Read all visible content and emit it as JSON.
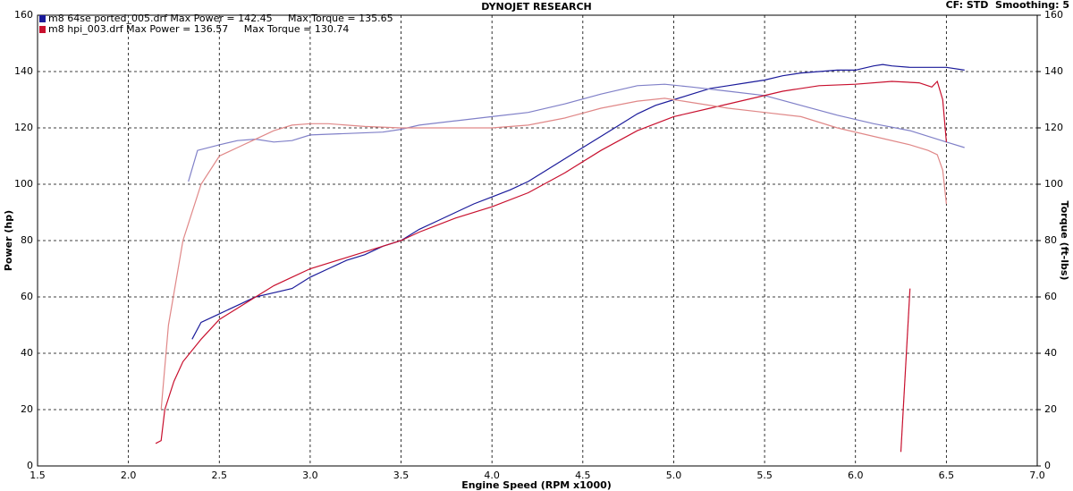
{
  "chart_data": {
    "type": "line",
    "title": "DYNOJET RESEARCH",
    "subtitle": "CF: STD  Smoothing: 5",
    "x_label": "Engine Speed (RPM x1000)",
    "y_label": "Power (hp)",
    "y2_label": "Torque (ft-lbs)",
    "legend": [
      {
        "text": "m8 64se ported_005.drf Max Power = 142.45     Max Torque = 135.65",
        "color": "#1a1a9a"
      },
      {
        "text": "m8 hpi_003.drf Max Power = 136.57     Max Torque = 130.74",
        "color": "#c8102e"
      }
    ],
    "xlim": [
      1.5,
      7.0
    ],
    "xticks": [
      1.5,
      {
        "value": 2,
        "label": "2.0"
      },
      2.5,
      {
        "value": 3,
        "label": "3.0"
      },
      3.5,
      {
        "value": 4,
        "label": "4.0"
      },
      4.5,
      {
        "value": 5,
        "label": "5.0"
      },
      5.5,
      {
        "value": 6,
        "label": "6.0"
      },
      6.5,
      {
        "value": 7,
        "label": "7.0"
      }
    ],
    "ylim": [
      0,
      160
    ],
    "yticks": [
      0,
      20,
      40,
      60,
      80,
      100,
      120,
      140,
      160
    ],
    "y2lim": [
      0,
      160
    ],
    "y2ticks": [
      0,
      20,
      40,
      60,
      80,
      100,
      120,
      140,
      160
    ],
    "grid": true,
    "series": [
      {
        "color": "#1a1a9a",
        "axis": "y",
        "x": [
          2.35,
          2.4,
          2.5,
          2.6,
          2.7,
          2.8,
          2.9,
          3.0,
          3.1,
          3.2,
          3.3,
          3.4,
          3.5,
          3.6,
          3.7,
          3.8,
          3.9,
          4.0,
          4.1,
          4.2,
          4.3,
          4.4,
          4.5,
          4.6,
          4.7,
          4.8,
          4.9,
          5.0,
          5.1,
          5.2,
          5.3,
          5.4,
          5.5,
          5.6,
          5.7,
          5.8,
          5.9,
          6.0,
          6.1,
          6.15,
          6.2,
          6.3,
          6.4,
          6.5,
          6.6
        ],
        "values": [
          45,
          51,
          54,
          57,
          60,
          61.5,
          63,
          67,
          70,
          73,
          75,
          78,
          80,
          84,
          87,
          90,
          93,
          95.5,
          98,
          101,
          105,
          109,
          113,
          117,
          121,
          125,
          128,
          130,
          132,
          134,
          135,
          136,
          137,
          138.5,
          139.5,
          140,
          140.5,
          140.5,
          142,
          142.5,
          142,
          141.5,
          141.5,
          141.5,
          140.5
        ]
      },
      {
        "color": "#8080c8",
        "axis": "y2",
        "x": [
          2.33,
          2.38,
          2.5,
          2.6,
          2.7,
          2.8,
          2.9,
          3.0,
          3.2,
          3.4,
          3.5,
          3.6,
          3.8,
          4.0,
          4.2,
          4.4,
          4.6,
          4.8,
          4.95,
          5.1,
          5.3,
          5.5,
          5.7,
          5.9,
          6.1,
          6.3,
          6.5,
          6.6
        ],
        "values": [
          101,
          112,
          114,
          115.5,
          116,
          115,
          115.5,
          117.5,
          118,
          118.5,
          119.5,
          121,
          122.5,
          124,
          125.5,
          128.5,
          132,
          135,
          135.5,
          134.5,
          133,
          131.5,
          128,
          124.5,
          121.5,
          119,
          115,
          113
        ]
      },
      {
        "color": "#c8102e",
        "axis": "y",
        "x": [
          2.15,
          2.18,
          2.2,
          2.25,
          2.3,
          2.4,
          2.5,
          2.6,
          2.7,
          2.8,
          2.9,
          3.0,
          3.2,
          3.4,
          3.5,
          3.6,
          3.8,
          4.0,
          4.2,
          4.4,
          4.6,
          4.8,
          5.0,
          5.2,
          5.4,
          5.6,
          5.8,
          6.0,
          6.2,
          6.35,
          6.42,
          6.45,
          6.48,
          6.5
        ],
        "values": [
          8,
          9,
          20,
          30,
          37,
          45,
          52,
          56,
          60,
          64,
          67,
          70,
          74,
          78,
          80,
          83,
          88,
          92,
          97,
          104,
          112,
          119,
          124,
          127,
          130,
          133,
          135,
          135.5,
          136.5,
          136,
          134.5,
          136.5,
          130,
          115
        ]
      },
      {
        "color": "#e08888",
        "axis": "y2",
        "x": [
          2.18,
          2.22,
          2.3,
          2.4,
          2.5,
          2.6,
          2.7,
          2.8,
          2.9,
          3.0,
          3.1,
          3.3,
          3.5,
          3.8,
          4.0,
          4.2,
          4.4,
          4.6,
          4.8,
          4.95,
          5.1,
          5.3,
          5.5,
          5.7,
          5.9,
          6.1,
          6.3,
          6.4,
          6.45,
          6.48,
          6.5
        ],
        "values": [
          20,
          50,
          80,
          100,
          110,
          113,
          116,
          119,
          121,
          121.5,
          121.5,
          120.5,
          120,
          120,
          120,
          121,
          123.5,
          127,
          129.5,
          130.5,
          129,
          127,
          125.5,
          124,
          120,
          117,
          114,
          112,
          110.5,
          105,
          93
        ]
      },
      {
        "color": "#c8102e",
        "axis": "y",
        "x": [
          6.25,
          6.3
        ],
        "values": [
          5,
          63
        ]
      }
    ]
  }
}
